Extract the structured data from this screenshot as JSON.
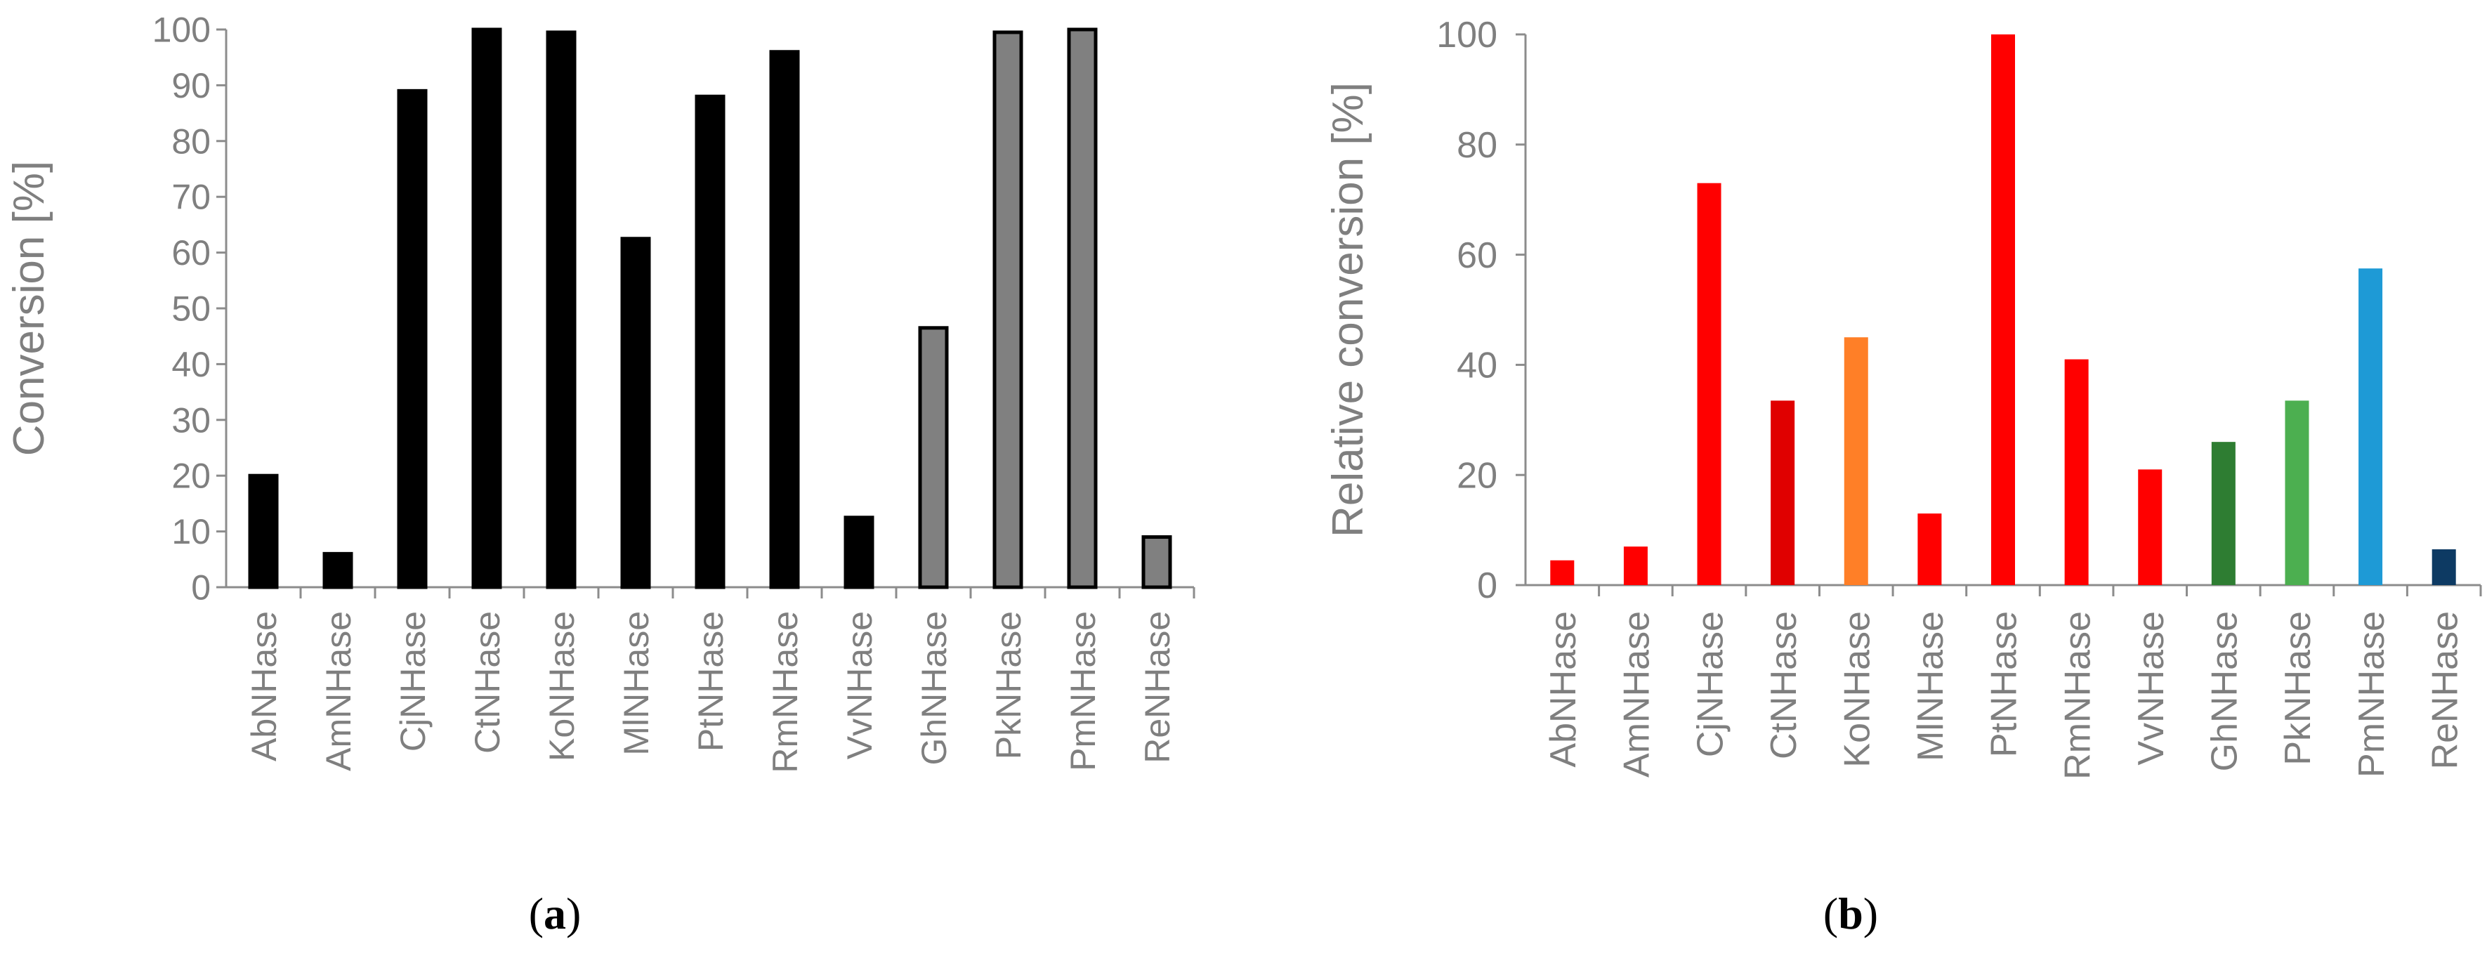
{
  "chart_data": [
    {
      "type": "bar",
      "panel_label": "(a)",
      "categories": [
        "AbNHase",
        "AmNHase",
        "CjNHase",
        "CtNHase",
        "KoNHase",
        "MlNHase",
        "PtNHase",
        "RmNHase",
        "VvNHase",
        "GhNHase",
        "PkNHase",
        "PmNHase",
        "ReNHase"
      ],
      "values": [
        20,
        6,
        89,
        100,
        99.5,
        62.5,
        88,
        96,
        12.5,
        46.5,
        99.5,
        100,
        9
      ],
      "bar_colors": [
        "#000000",
        "#000000",
        "#000000",
        "#000000",
        "#000000",
        "#000000",
        "#000000",
        "#000000",
        "#000000",
        "#808080",
        "#808080",
        "#808080",
        "#808080"
      ],
      "ylabel": "Conversion [%]",
      "ylim": [
        0,
        100
      ],
      "yticks": [
        "0",
        "10",
        "20",
        "30",
        "40",
        "50",
        "60",
        "70",
        "80",
        "90",
        "100"
      ],
      "grid": false
    },
    {
      "type": "bar",
      "panel_label": "(b)",
      "categories": [
        "AbNHase",
        "AmNHase",
        "CjNHase",
        "CtNHase",
        "KoNHase",
        "MlNHase",
        "PtNHase",
        "RmNHase",
        "VvNHase",
        "GhNHase",
        "PkNHase",
        "PmNHase",
        "ReNHase"
      ],
      "values": [
        4.5,
        7,
        73,
        33.5,
        45,
        13,
        100,
        41,
        21,
        26,
        33.5,
        57.5,
        6.5
      ],
      "bar_colors": [
        "#ff0000",
        "#ff0000",
        "#ff0000",
        "#e00000",
        "#ff7f27",
        "#ff0000",
        "#ff0000",
        "#ff0000",
        "#ff0000",
        "#2e7d32",
        "#4caf50",
        "#1e9ad6",
        "#0d3a63"
      ],
      "ylabel": "Relative conversion [%]",
      "ylim": [
        0,
        100
      ],
      "yticks": [
        "0",
        "20",
        "40",
        "60",
        "80",
        "100"
      ],
      "grid": false
    }
  ]
}
